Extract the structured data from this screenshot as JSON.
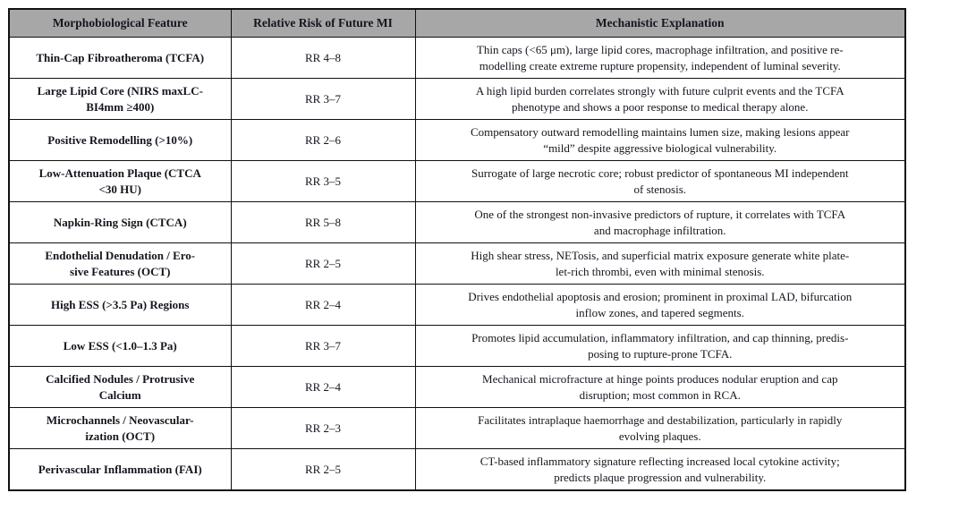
{
  "table": {
    "headers": [
      "Morphobiological Feature",
      "Relative Risk of Future MI",
      "Mechanistic Explanation"
    ],
    "rows": [
      {
        "feature": "Thin-Cap Fibroatheroma (TCFA)",
        "rr": "RR 4–8",
        "explanation": "Thin caps (<65 μm), large lipid cores, macrophage infiltration, and positive re-\nmodelling create extreme rupture propensity, independent of luminal severity."
      },
      {
        "feature": "Large Lipid Core (NIRS maxLC-\nBI4mm ≥400)",
        "rr": "RR 3–7",
        "explanation": "A high lipid burden correlates strongly with future culprit events and the TCFA\nphenotype and shows a poor response to medical therapy alone."
      },
      {
        "feature": "Positive Remodelling (>10%)",
        "rr": "RR 2–6",
        "explanation": "Compensatory outward remodelling maintains lumen size, making lesions appear\n“mild” despite aggressive biological vulnerability."
      },
      {
        "feature": "Low-Attenuation Plaque (CTCA\n<30 HU)",
        "rr": "RR 3–5",
        "explanation": "Surrogate of large necrotic core; robust predictor of spontaneous MI independent\nof stenosis."
      },
      {
        "feature": "Napkin-Ring Sign (CTCA)",
        "rr": "RR 5–8",
        "explanation": "One of the strongest non-invasive predictors of rupture, it correlates with TCFA\nand macrophage infiltration."
      },
      {
        "feature": "Endothelial Denudation / Ero-\nsive Features (OCT)",
        "rr": "RR 2–5",
        "explanation": "High shear stress, NETosis, and superficial matrix exposure generate white plate-\nlet-rich thrombi, even with minimal stenosis."
      },
      {
        "feature": "High ESS (>3.5 Pa) Regions",
        "rr": "RR 2–4",
        "explanation": "Drives endothelial apoptosis and erosion; prominent in proximal LAD, bifurcation\ninflow zones, and tapered segments."
      },
      {
        "feature": "Low ESS (<1.0–1.3 Pa)",
        "rr": "RR 3–7",
        "explanation": "Promotes lipid accumulation, inflammatory infiltration, and cap thinning, predis-\nposing to rupture-prone TCFA."
      },
      {
        "feature": "Calcified Nodules / Protrusive\nCalcium",
        "rr": "RR 2–4",
        "explanation": "Mechanical microfracture at hinge points produces nodular eruption and cap\ndisruption; most common in RCA."
      },
      {
        "feature": "Microchannels / Neovascular-\nization (OCT)",
        "rr": "RR 2–3",
        "explanation": "Facilitates intraplaque haemorrhage and destabilization, particularly in rapidly\nevolving plaques."
      },
      {
        "feature": "Perivascular Inflammation (FAI)",
        "rr": "RR 2–5",
        "explanation": "CT-based inflammatory signature reflecting increased local cytokine activity;\npredicts plaque progression and vulnerability."
      }
    ]
  },
  "colors": {
    "header_bg": "#a7a7a7",
    "border": "#111111",
    "text": "#15151e",
    "page_bg": "#ffffff"
  },
  "chart_data": {
    "type": "table",
    "title": "",
    "columns": [
      "Morphobiological Feature",
      "Relative Risk of Future MI",
      "Mechanistic Explanation"
    ],
    "rr_ranges": [
      {
        "feature": "Thin-Cap Fibroatheroma (TCFA)",
        "rr_low": 4,
        "rr_high": 8
      },
      {
        "feature": "Large Lipid Core (NIRS maxLC-BI4mm ≥400)",
        "rr_low": 3,
        "rr_high": 7
      },
      {
        "feature": "Positive Remodelling (>10%)",
        "rr_low": 2,
        "rr_high": 6
      },
      {
        "feature": "Low-Attenuation Plaque (CTCA <30 HU)",
        "rr_low": 3,
        "rr_high": 5
      },
      {
        "feature": "Napkin-Ring Sign (CTCA)",
        "rr_low": 5,
        "rr_high": 8
      },
      {
        "feature": "Endothelial Denudation / Erosive Features (OCT)",
        "rr_low": 2,
        "rr_high": 5
      },
      {
        "feature": "High ESS (>3.5 Pa) Regions",
        "rr_low": 2,
        "rr_high": 4
      },
      {
        "feature": "Low ESS (<1.0–1.3 Pa)",
        "rr_low": 3,
        "rr_high": 7
      },
      {
        "feature": "Calcified Nodules / Protrusive Calcium",
        "rr_low": 2,
        "rr_high": 4
      },
      {
        "feature": "Microchannels / Neovascularization (OCT)",
        "rr_low": 2,
        "rr_high": 3
      },
      {
        "feature": "Perivascular Inflammation (FAI)",
        "rr_low": 2,
        "rr_high": 5
      }
    ]
  }
}
